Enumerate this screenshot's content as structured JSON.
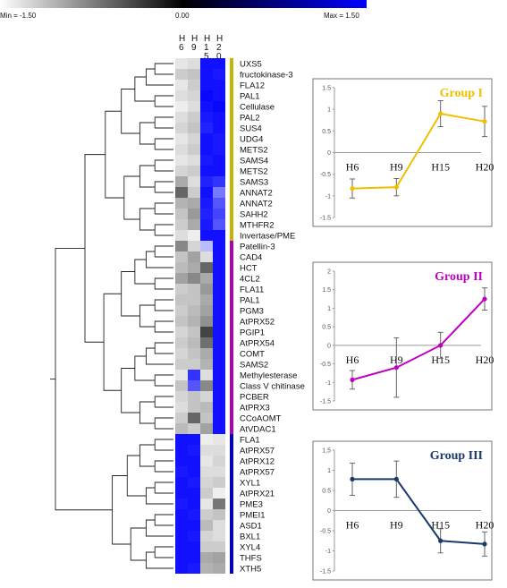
{
  "colors": {
    "low": "#000000",
    "mid": "#ffffff",
    "high": "#0000ff",
    "group1": "#f0c000",
    "group2": "#c000c0",
    "group3": "#1a3a6e",
    "bracket1": "#c8b400",
    "bracket2": "#b000b0",
    "bracket3": "#0000cc"
  },
  "chart_data": [
    {
      "type": "heatmap",
      "legend": {
        "min_label": "Min = -1.50",
        "mid_label": "0.00",
        "max_label": "Max = 1.50",
        "min": -1.5,
        "max": 1.5
      },
      "columns": [
        {
          "label_chars": [
            "H",
            "6"
          ],
          "name": "H6"
        },
        {
          "label_chars": [
            "H",
            "9"
          ],
          "name": "H9"
        },
        {
          "label_chars": [
            "H",
            "1",
            "5"
          ],
          "name": "H15"
        },
        {
          "label_chars": [
            "H",
            "2",
            "0"
          ],
          "name": "H20"
        }
      ],
      "rows": [
        {
          "label": "UXS5",
          "v": [
            -0.15,
            -0.2,
            1.4,
            1.4
          ],
          "group": 1
        },
        {
          "label": "fructokinase-3",
          "v": [
            -0.3,
            -0.35,
            1.4,
            1.35
          ],
          "group": 1
        },
        {
          "label": "FLA12",
          "v": [
            -0.15,
            -0.3,
            1.4,
            1.4
          ],
          "group": 1
        },
        {
          "label": "PAL1",
          "v": [
            -0.2,
            -0.25,
            1.45,
            1.4
          ],
          "group": 1
        },
        {
          "label": "Cellulase",
          "v": [
            -0.1,
            -0.2,
            1.4,
            1.45
          ],
          "group": 1
        },
        {
          "label": "PAL2",
          "v": [
            -0.2,
            -0.3,
            1.35,
            1.4
          ],
          "group": 1
        },
        {
          "label": "SUS4",
          "v": [
            -0.25,
            -0.35,
            1.3,
            1.4
          ],
          "group": 1
        },
        {
          "label": "UDG4",
          "v": [
            -0.15,
            -0.25,
            1.4,
            1.35
          ],
          "group": 1
        },
        {
          "label": "METS2",
          "v": [
            -0.2,
            -0.3,
            1.4,
            1.35
          ],
          "group": 1
        },
        {
          "label": "SAMS4",
          "v": [
            -0.15,
            -0.2,
            1.35,
            1.4
          ],
          "group": 1
        },
        {
          "label": "METS2",
          "v": [
            -0.25,
            -0.3,
            1.4,
            1.4
          ],
          "group": 1
        },
        {
          "label": "SAMS3",
          "v": [
            -0.5,
            -0.2,
            1.3,
            1.2
          ],
          "group": 1
        },
        {
          "label": "ANNAT2",
          "v": [
            -0.9,
            -0.3,
            1.4,
            0.8
          ],
          "group": 1
        },
        {
          "label": "ANNAT2",
          "v": [
            -0.45,
            -0.5,
            1.35,
            1.0
          ],
          "group": 1
        },
        {
          "label": "SAHH2",
          "v": [
            -0.35,
            -0.6,
            1.3,
            1.1
          ],
          "group": 1
        },
        {
          "label": "MTHFR2",
          "v": [
            -0.3,
            -0.5,
            1.35,
            1.0
          ],
          "group": 1
        },
        {
          "label": "Invertase/PME",
          "v": [
            -0.2,
            -0.1,
            1.4,
            1.4
          ],
          "group": 1
        },
        {
          "label": "Patellin-3",
          "v": [
            -0.7,
            -0.25,
            0.4,
            1.4
          ],
          "group": 2
        },
        {
          "label": "CAD4",
          "v": [
            -0.35,
            -0.55,
            -0.2,
            1.4
          ],
          "group": 2
        },
        {
          "label": "HCT",
          "v": [
            -0.4,
            -0.5,
            -0.9,
            1.4
          ],
          "group": 2
        },
        {
          "label": "4CL2",
          "v": [
            -0.55,
            -0.7,
            -0.5,
            1.4
          ],
          "group": 2
        },
        {
          "label": "FLA11",
          "v": [
            -0.3,
            -0.35,
            -0.6,
            1.4
          ],
          "group": 2
        },
        {
          "label": "PAL1",
          "v": [
            -0.35,
            -0.35,
            -0.5,
            1.4
          ],
          "group": 2
        },
        {
          "label": "PGM3",
          "v": [
            -0.3,
            -0.4,
            -0.55,
            1.4
          ],
          "group": 2
        },
        {
          "label": "AtPRX52",
          "v": [
            -0.35,
            -0.45,
            -0.65,
            1.4
          ],
          "group": 2
        },
        {
          "label": "PGIP1",
          "v": [
            -0.25,
            -0.35,
            -1.1,
            1.4
          ],
          "group": 2
        },
        {
          "label": "AtPRX54",
          "v": [
            -0.3,
            -0.4,
            -0.85,
            1.4
          ],
          "group": 2
        },
        {
          "label": "COMT",
          "v": [
            -0.25,
            -0.35,
            -0.5,
            1.4
          ],
          "group": 2
        },
        {
          "label": "SAMS2",
          "v": [
            -0.3,
            -0.3,
            -0.45,
            1.4
          ],
          "group": 2
        },
        {
          "label": "Methylesterase",
          "v": [
            -0.15,
            1.2,
            -0.2,
            1.4
          ],
          "group": 2
        },
        {
          "label": "Class V chitinase",
          "v": [
            -0.35,
            1.0,
            -0.7,
            1.4
          ],
          "group": 2
        },
        {
          "label": "PCBER",
          "v": [
            -0.25,
            -0.35,
            -0.25,
            1.4
          ],
          "group": 2
        },
        {
          "label": "AtPRX3",
          "v": [
            -0.2,
            -0.35,
            -0.4,
            1.4
          ],
          "group": 2
        },
        {
          "label": "CCoAOMT",
          "v": [
            -0.3,
            -0.9,
            -0.35,
            1.4
          ],
          "group": 2
        },
        {
          "label": "AtVDAC1",
          "v": [
            -0.4,
            -0.3,
            -0.55,
            1.4
          ],
          "group": 2
        },
        {
          "label": "FLA1",
          "v": [
            1.4,
            1.4,
            -0.1,
            -0.15
          ],
          "group": 3
        },
        {
          "label": "AtPRX57",
          "v": [
            1.4,
            1.35,
            -0.2,
            -0.2
          ],
          "group": 3
        },
        {
          "label": "AtPRX12",
          "v": [
            1.4,
            1.4,
            -0.15,
            -0.25
          ],
          "group": 3
        },
        {
          "label": "AtPRX57",
          "v": [
            1.35,
            1.4,
            -0.2,
            -0.2
          ],
          "group": 3
        },
        {
          "label": "XYL1",
          "v": [
            1.4,
            1.35,
            -0.25,
            -0.3
          ],
          "group": 3
        },
        {
          "label": "AtPRX21",
          "v": [
            1.4,
            1.4,
            -0.3,
            -0.1
          ],
          "group": 3
        },
        {
          "label": "PME3",
          "v": [
            1.35,
            1.4,
            -0.15,
            -0.8
          ],
          "group": 3
        },
        {
          "label": "PMEI1",
          "v": [
            1.4,
            1.35,
            -0.3,
            -0.35
          ],
          "group": 3
        },
        {
          "label": "ASD1",
          "v": [
            1.4,
            1.4,
            -0.4,
            -0.2
          ],
          "group": 3
        },
        {
          "label": "BXL1",
          "v": [
            1.4,
            1.35,
            -0.25,
            -0.2
          ],
          "group": 3
        },
        {
          "label": "XYL4",
          "v": [
            1.4,
            1.4,
            -0.3,
            -0.3
          ],
          "group": 3
        },
        {
          "label": "THFS",
          "v": [
            1.4,
            1.4,
            -0.5,
            -0.55
          ],
          "group": 3
        },
        {
          "label": "XTH5",
          "v": [
            1.4,
            1.35,
            -0.45,
            -0.5
          ],
          "group": 3
        }
      ]
    },
    {
      "type": "line",
      "title": "Group I",
      "categories": [
        "H6",
        "H9",
        "H15",
        "H20"
      ],
      "values": [
        -0.83,
        -0.8,
        0.9,
        0.72
      ],
      "errors": [
        0.22,
        0.2,
        0.3,
        0.35
      ],
      "ylim": [
        -1.5,
        1.5
      ],
      "yticks": [
        "1.5",
        "1",
        "0.5",
        "0",
        "-0.5",
        "-1",
        "-1.5"
      ],
      "color_key": "group1"
    },
    {
      "type": "line",
      "title": "Group II",
      "categories": [
        "H6",
        "H9",
        "H15",
        "H20"
      ],
      "values": [
        -0.93,
        -0.6,
        0.0,
        1.25
      ],
      "errors": [
        0.25,
        0.8,
        0.35,
        0.3
      ],
      "ylim": [
        -1.5,
        2
      ],
      "yticks": [
        "2",
        "1.5",
        "1",
        "0.5",
        "0",
        "-0.5",
        "-1",
        "-1.5"
      ],
      "color_key": "group2"
    },
    {
      "type": "line",
      "title": "Group III",
      "categories": [
        "H6",
        "H9",
        "H15",
        "H20"
      ],
      "values": [
        0.78,
        0.78,
        -0.75,
        -0.83
      ],
      "errors": [
        0.4,
        0.45,
        0.3,
        0.3
      ],
      "ylim": [
        -1.5,
        1.5
      ],
      "yticks": [
        "1.5",
        "1",
        "0.5",
        "0",
        "-0.5",
        "-1",
        "-1.5"
      ],
      "color_key": "group3"
    }
  ]
}
